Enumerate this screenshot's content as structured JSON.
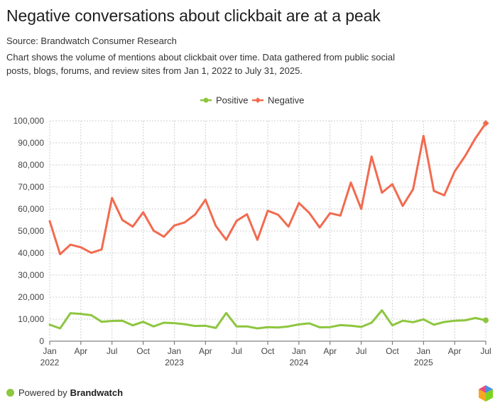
{
  "header": {
    "title": "Negative conversations about clickbait are at a peak",
    "source": "Source: Brandwatch Consumer Research",
    "description": "Chart shows the volume of mentions about clickbait over time. Data gathered from public social posts, blogs, forums, and review sites from Jan 1, 2022 to July 31, 2025."
  },
  "footer": {
    "powered_by": "Powered by",
    "brand": "Brandwatch"
  },
  "chart_data": {
    "type": "line",
    "legend_position": "top-center",
    "grid": true,
    "x": [
      "2022-01",
      "2022-02",
      "2022-03",
      "2022-04",
      "2022-05",
      "2022-06",
      "2022-07",
      "2022-08",
      "2022-09",
      "2022-10",
      "2022-11",
      "2022-12",
      "2023-01",
      "2023-02",
      "2023-03",
      "2023-04",
      "2023-05",
      "2023-06",
      "2023-07",
      "2023-08",
      "2023-09",
      "2023-10",
      "2023-11",
      "2023-12",
      "2024-01",
      "2024-02",
      "2024-03",
      "2024-04",
      "2024-05",
      "2024-06",
      "2024-07",
      "2024-08",
      "2024-09",
      "2024-10",
      "2024-11",
      "2024-12",
      "2025-01",
      "2025-02",
      "2025-03",
      "2025-04",
      "2025-05",
      "2025-06",
      "2025-07"
    ],
    "x_ticks": [
      {
        "label": "Jan",
        "sub": "2022"
      },
      {
        "label": "Apr",
        "sub": ""
      },
      {
        "label": "Jul",
        "sub": ""
      },
      {
        "label": "Oct",
        "sub": ""
      },
      {
        "label": "Jan",
        "sub": "2023"
      },
      {
        "label": "Apr",
        "sub": ""
      },
      {
        "label": "Jul",
        "sub": ""
      },
      {
        "label": "Oct",
        "sub": ""
      },
      {
        "label": "Jan",
        "sub": "2024"
      },
      {
        "label": "Apr",
        "sub": ""
      },
      {
        "label": "Jul",
        "sub": ""
      },
      {
        "label": "Oct",
        "sub": ""
      },
      {
        "label": "Jan",
        "sub": "2025"
      },
      {
        "label": "Apr",
        "sub": ""
      },
      {
        "label": "Jul",
        "sub": ""
      }
    ],
    "ylim": [
      0,
      100000
    ],
    "y_ticks": [
      "0",
      "10,000",
      "20,000",
      "30,000",
      "40,000",
      "50,000",
      "60,000",
      "70,000",
      "80,000",
      "90,000",
      "100,000"
    ],
    "series": [
      {
        "name": "Positive",
        "color": "#8dc63f",
        "marker": "circle",
        "values": [
          7500,
          5800,
          12700,
          12400,
          11800,
          8800,
          9200,
          9300,
          7200,
          8800,
          6700,
          8400,
          8200,
          7700,
          6900,
          7000,
          6000,
          12800,
          6700,
          6700,
          5800,
          6400,
          6200,
          6700,
          7600,
          8100,
          6300,
          6400,
          7300,
          7000,
          6500,
          8400,
          14000,
          7200,
          9300,
          8600,
          9900,
          7500,
          8700,
          9300,
          9500,
          10500,
          9500
        ]
      },
      {
        "name": "Negative",
        "color": "#f26a4f",
        "marker": "diamond",
        "values": [
          54500,
          39500,
          43800,
          42600,
          40100,
          41600,
          65000,
          55000,
          52000,
          58500,
          50200,
          47400,
          52500,
          53900,
          57500,
          64200,
          52300,
          46000,
          54600,
          57600,
          46000,
          59200,
          57400,
          52000,
          62700,
          58200,
          51600,
          58100,
          57000,
          72000,
          60000,
          83800,
          67400,
          71300,
          61400,
          69000,
          93200,
          68200,
          66200,
          77000,
          84000,
          92100,
          98900
        ]
      }
    ]
  }
}
